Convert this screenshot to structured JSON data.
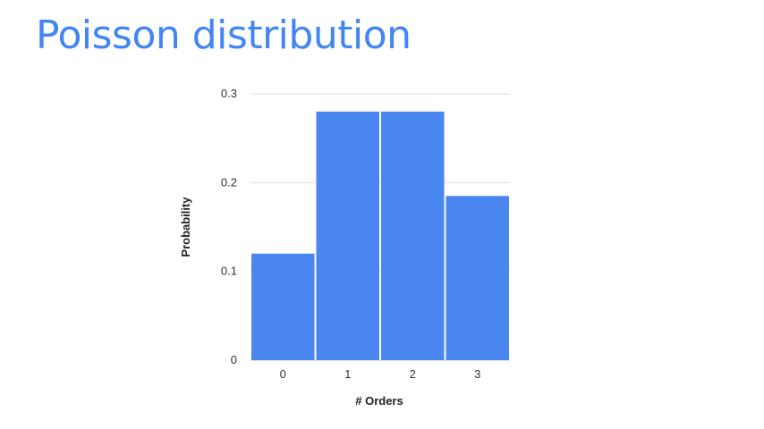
{
  "slide": {
    "title": "Poisson distribution"
  },
  "chart_data": {
    "type": "bar",
    "title": "",
    "categories": [
      "0",
      "1",
      "2",
      "3"
    ],
    "values": [
      0.12,
      0.28,
      0.28,
      0.185
    ],
    "xlabel": "# Orders",
    "ylabel": "Probability",
    "ylim": [
      0,
      0.3
    ],
    "yticks": [
      "0",
      "0.1",
      "0.2",
      "0.3"
    ],
    "grid": true,
    "legend": "none",
    "bar_color": "#4a86f0"
  }
}
